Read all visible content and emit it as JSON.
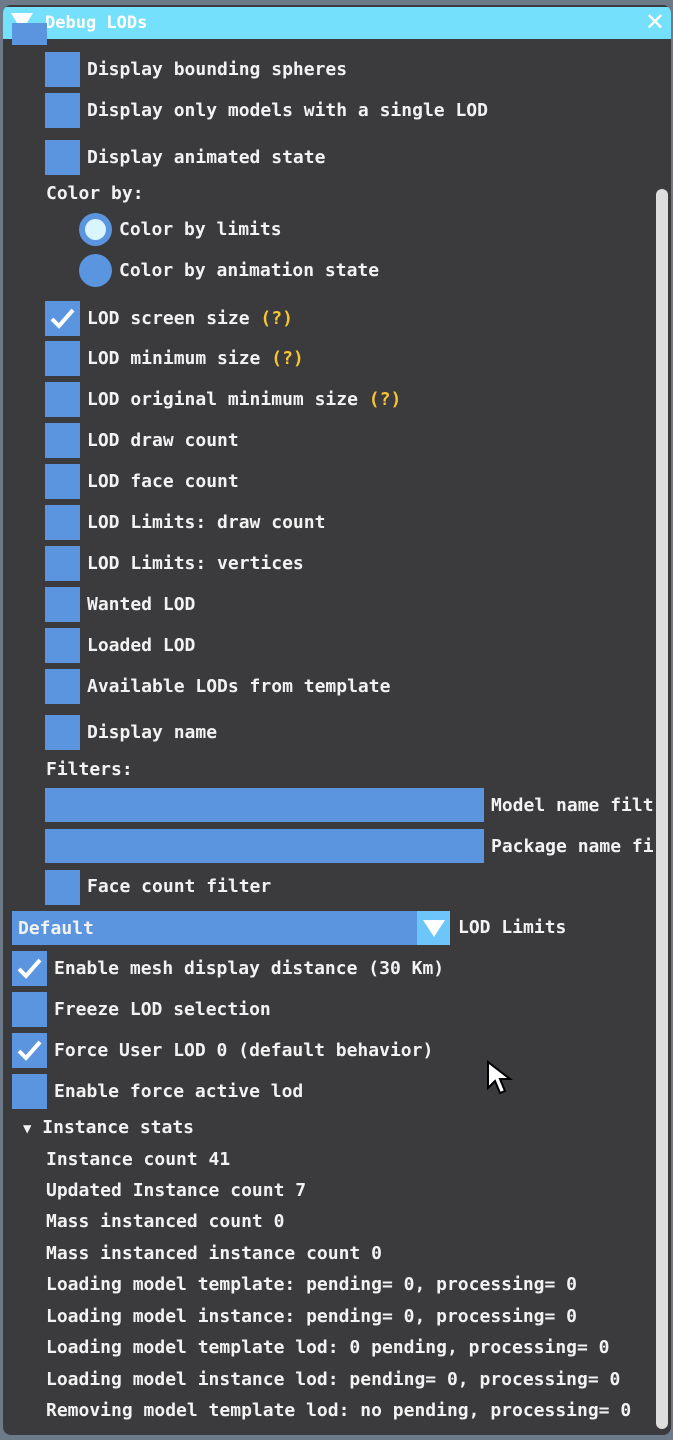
{
  "window": {
    "title": "Debug LODs",
    "close_icon": "close-icon",
    "collapse_icon": "triangle-down-icon"
  },
  "colors": {
    "title_bar": "#74e0fb",
    "widget": "#5b95e0",
    "background": "#3b3a3c",
    "help_marker": "#f7c531"
  },
  "checkboxes_top": [
    {
      "label": "Display bounding spheres",
      "checked": false
    },
    {
      "label": "Display only models with a single LOD",
      "checked": false
    },
    {
      "label": "Display animated state",
      "checked": false
    }
  ],
  "color_by": {
    "label": "Color by:",
    "options": [
      {
        "label": "Color by limits",
        "selected": true
      },
      {
        "label": "Color by animation state",
        "selected": false
      }
    ]
  },
  "lod_checkboxes": [
    {
      "label": "LOD screen size",
      "checked": true,
      "help": "(?)"
    },
    {
      "label": "LOD minimum size",
      "checked": false,
      "help": "(?)"
    },
    {
      "label": "LOD original minimum size",
      "checked": false,
      "help": "(?)"
    },
    {
      "label": "LOD draw count",
      "checked": false
    },
    {
      "label": "LOD face count",
      "checked": false
    },
    {
      "label": "LOD Limits: draw count",
      "checked": false
    },
    {
      "label": "LOD Limits: vertices",
      "checked": false
    },
    {
      "label": "Wanted LOD",
      "checked": false
    },
    {
      "label": "Loaded LOD",
      "checked": false
    },
    {
      "label": "Available LODs from template",
      "checked": false
    },
    {
      "label": "Display name",
      "checked": false
    }
  ],
  "filters": {
    "label": "Filters:",
    "model_name_label": "Model name filt",
    "model_name_value": "",
    "package_name_label": "Package name fi",
    "package_name_value": "",
    "face_count_label": "Face count filter",
    "face_count_checked": false
  },
  "lod_limits": {
    "selected": "Default",
    "label": "LOD Limits"
  },
  "options": [
    {
      "label": "Enable mesh display distance (30 Km)",
      "checked": true
    },
    {
      "label": "Freeze LOD selection",
      "checked": false
    },
    {
      "label": "Force User LOD 0 (default behavior)",
      "checked": true
    },
    {
      "label": "Enable force active lod",
      "checked": false
    }
  ],
  "instance_stats": {
    "header": "Instance stats",
    "expanded": true,
    "lines": [
      "Instance count 41",
      "Updated Instance count 7",
      "Mass instanced count 0",
      "Mass instanced instance count 0",
      "Loading model template: pending= 0, processing= 0",
      "Loading model instance: pending= 0, processing= 0",
      "Loading model template lod: 0 pending, processing= 0",
      "Loading model instance lod: pending= 0, processing= 0",
      "Removing model template lod: no pending, processing= 0"
    ]
  }
}
